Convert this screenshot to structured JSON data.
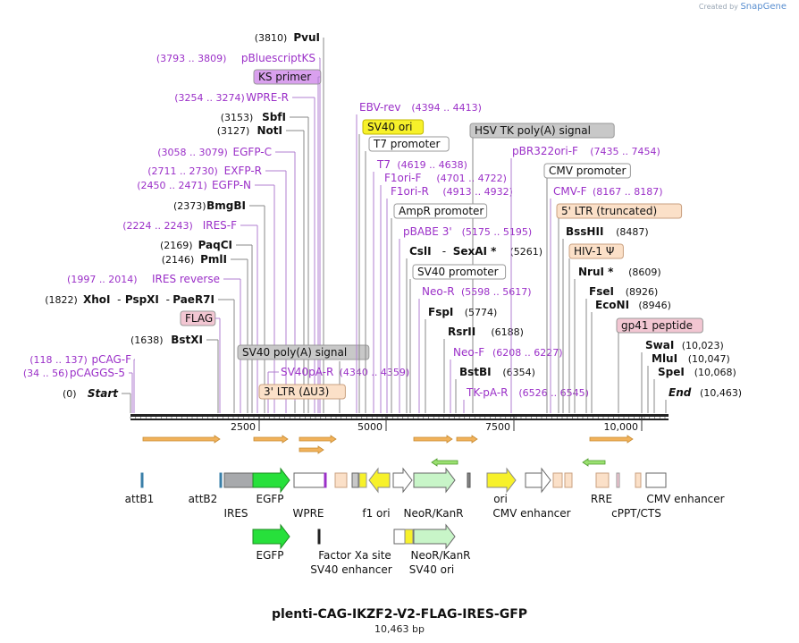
{
  "credit": {
    "prefix": "Created by",
    "brand": "SnapGene"
  },
  "plasmid": {
    "name": "plenti-CAG-IKZF2-V2-FLAG-IRES-GFP",
    "length_label": "10,463 bp"
  },
  "ruler": {
    "ticks": [
      "2500",
      "5000",
      "7500",
      "10,000"
    ]
  },
  "colors": {
    "primer": "#9b30c8",
    "enzyme": "#111111",
    "axis": "#222222",
    "leader": "#b07fd0",
    "leaderDark": "#888888"
  },
  "left_labels": [
    {
      "kind": "enzyme",
      "pos": "(3810)",
      "name": "PvuI"
    },
    {
      "kind": "primer",
      "pos": "(3793 .. 3809)",
      "name": "pBluescriptKS"
    },
    {
      "kind": "box",
      "name": "KS primer"
    },
    {
      "kind": "primer",
      "pos": "(3254 .. 3274)",
      "name": "WPRE-R"
    },
    {
      "kind": "enzyme",
      "pos": "(3153)",
      "name": "SbfI"
    },
    {
      "kind": "enzyme",
      "pos": "(3127)",
      "name": "NotI"
    },
    {
      "kind": "primer",
      "pos": "(3058 .. 3079)",
      "name": "EGFP-C"
    },
    {
      "kind": "primer",
      "pos": "(2711 .. 2730)",
      "name": "EXFP-R"
    },
    {
      "kind": "primer",
      "pos": "(2450 .. 2471)",
      "name": "EGFP-N"
    },
    {
      "kind": "enzyme",
      "pos": "(2373)",
      "name": "BmgBI"
    },
    {
      "kind": "primer",
      "pos": "(2224 .. 2243)",
      "name": "IRES-F"
    },
    {
      "kind": "enzyme",
      "pos": "(2169)",
      "name": "PaqCI"
    },
    {
      "kind": "enzyme",
      "pos": "(2146)",
      "name": "PmlI"
    },
    {
      "kind": "primer",
      "pos": "(1997 .. 2014)",
      "name": "IRES reverse"
    },
    {
      "kind": "enzyme3",
      "pos": "(1822)",
      "name": "XhoI",
      "name2": "PspXI",
      "name3": "PaeR7I"
    },
    {
      "kind": "box",
      "name": "FLAG"
    },
    {
      "kind": "enzyme",
      "pos": "(1638)",
      "name": "BstXI"
    },
    {
      "kind": "primer",
      "pos": "(118 .. 137)",
      "name": "pCAG-F"
    },
    {
      "kind": "primer",
      "pos": "(34 .. 56)",
      "name": "pCAGGS-5"
    },
    {
      "kind": "start",
      "pos": "(0)",
      "name": "Start"
    }
  ],
  "middle_labels": [
    {
      "kind": "box",
      "name": "SV40 poly(A) signal"
    },
    {
      "kind": "primer",
      "pos": "(4340 .. 4359)",
      "name": "SV40pA-R"
    },
    {
      "kind": "box",
      "name": "3' LTR (ΔU3)"
    }
  ],
  "right_labels": [
    {
      "kind": "primer",
      "pos": "(4394 .. 4413)",
      "name": "EBV-rev"
    },
    {
      "kind": "box",
      "name": "SV40 ori"
    },
    {
      "kind": "box",
      "name": "T7 promoter"
    },
    {
      "kind": "box",
      "name": "HSV TK poly(A) signal"
    },
    {
      "kind": "primer",
      "pos": "(4619 .. 4638)",
      "name": "T7"
    },
    {
      "kind": "primer",
      "pos": "(4701 .. 4722)",
      "name": "F1ori-F"
    },
    {
      "kind": "primer",
      "pos": "(4913 .. 4932)",
      "name": "F1ori-R"
    },
    {
      "kind": "box",
      "name": "AmpR promoter"
    },
    {
      "kind": "primer",
      "pos": "(5175 .. 5195)",
      "name": "pBABE 3'"
    },
    {
      "kind": "enzyme2",
      "pos": "(5261)",
      "name": "CslI",
      "name2": "SexAI *"
    },
    {
      "kind": "box",
      "name": "SV40 promoter"
    },
    {
      "kind": "primer",
      "pos": "(5598 .. 5617)",
      "name": "Neo-R"
    },
    {
      "kind": "enzyme",
      "pos": "(5774)",
      "name": "FspI"
    },
    {
      "kind": "enzyme",
      "pos": "(6188)",
      "name": "RsrII"
    },
    {
      "kind": "primer",
      "pos": "(6208 .. 6227)",
      "name": "Neo-F"
    },
    {
      "kind": "enzyme",
      "pos": "(6354)",
      "name": "BstBI"
    },
    {
      "kind": "primer",
      "pos": "(6526 .. 6545)",
      "name": "TK-pA-R"
    },
    {
      "kind": "primer",
      "pos": "(7435 .. 7454)",
      "name": "pBR322ori-F"
    },
    {
      "kind": "box",
      "name": "CMV promoter"
    },
    {
      "kind": "primer",
      "pos": "(8167 .. 8187)",
      "name": "CMV-F"
    },
    {
      "kind": "box",
      "name": "5' LTR (truncated)"
    },
    {
      "kind": "enzyme",
      "pos": "(8487)",
      "name": "BssHII"
    },
    {
      "kind": "box",
      "name": "HIV-1 Ψ"
    },
    {
      "kind": "enzyme",
      "pos": "(8609)",
      "name": "NruI *"
    },
    {
      "kind": "enzyme",
      "pos": "(8926)",
      "name": "FseI"
    },
    {
      "kind": "enzyme",
      "pos": "(8946)",
      "name": "EcoNI"
    },
    {
      "kind": "box",
      "name": "gp41 peptide"
    },
    {
      "kind": "enzyme",
      "pos": "(10,023)",
      "name": "SwaI"
    },
    {
      "kind": "enzyme",
      "pos": "(10,047)",
      "name": "MluI"
    },
    {
      "kind": "enzyme",
      "pos": "(10,068)",
      "name": "SpeI"
    },
    {
      "kind": "end",
      "pos": "(10,463)",
      "name": "End"
    }
  ],
  "feature_labels": [
    "attB1",
    "attB2",
    "IRES",
    "EGFP",
    "WPRE",
    "f1 ori",
    "NeoR/KanR",
    "ori",
    "CMV enhancer",
    "RRE",
    "cPPT/CTS",
    "CMV enhancer"
  ],
  "feature_labels_row2": [
    "EGFP",
    "Factor Xa site",
    "SV40 enhancer",
    "NeoR/KanR",
    "SV40 ori"
  ]
}
